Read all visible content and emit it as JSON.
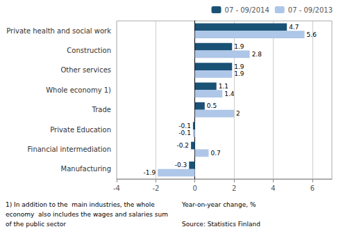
{
  "chart_data": {
    "type": "bar",
    "orientation": "horizontal",
    "categories": [
      "Private health and social work",
      "Construction",
      "Other services",
      "Whole economy 1)",
      "Trade",
      "Private Education",
      "Financial intermediation",
      "Manufacturing"
    ],
    "series": [
      {
        "name": "07 - 09/2014",
        "color": "#1a5276",
        "values": [
          4.7,
          1.9,
          1.9,
          1.1,
          0.5,
          -0.1,
          -0.2,
          -0.3
        ]
      },
      {
        "name": "07 - 09/2013",
        "color": "#aec6e8",
        "values": [
          5.6,
          2.8,
          1.9,
          1.4,
          2.0,
          -0.1,
          0.7,
          -1.9
        ]
      }
    ],
    "xlim": [
      -4,
      7
    ],
    "xticks": [
      -4,
      -2,
      0,
      2,
      4,
      6
    ],
    "xlabel": "Year-on-year change, %",
    "annotations": [
      "1) In addition to the  main industries, the whole",
      "economy  also includes the wages and salaries sum",
      "of the public sector",
      "Source: Statistics Finland"
    ],
    "grid": true,
    "legend": "upper right",
    "data_labels": true
  }
}
